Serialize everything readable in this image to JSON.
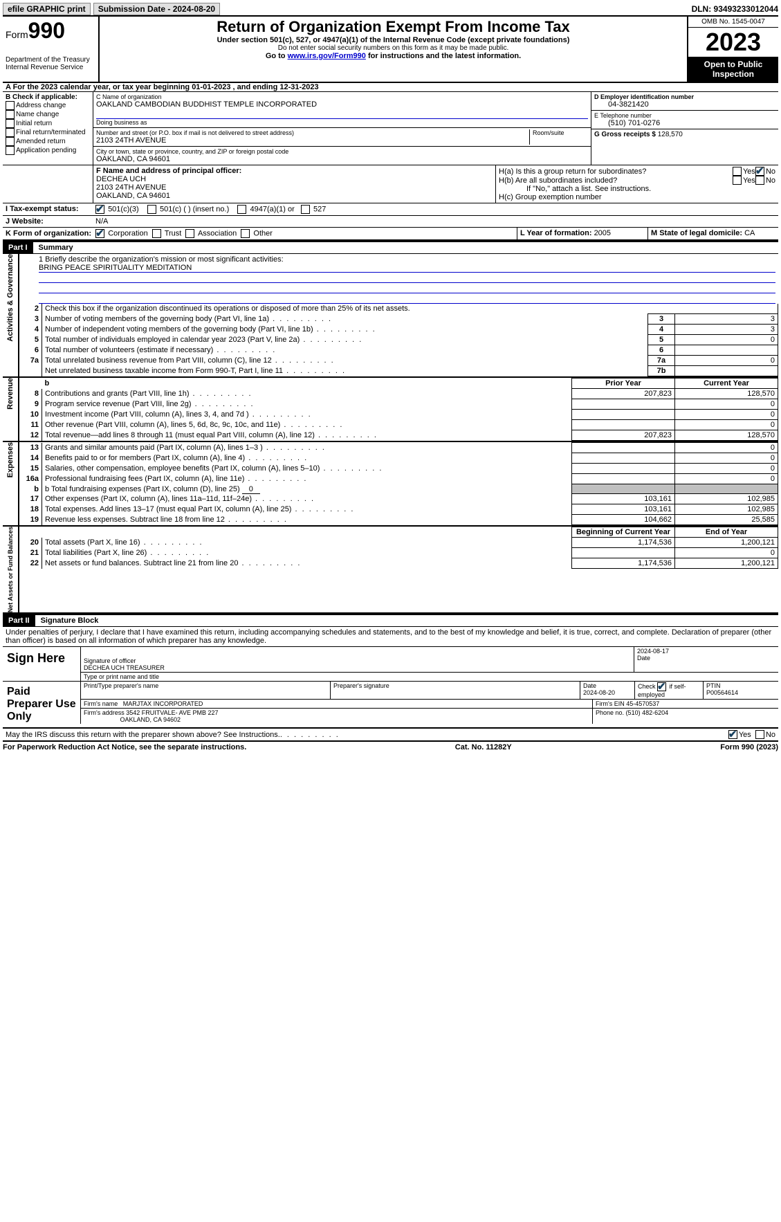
{
  "topbar": {
    "efile": "efile GRAPHIC print",
    "submission": "Submission Date - 2024-08-20",
    "dln": "DLN: 93493233012044"
  },
  "header": {
    "form_prefix": "Form",
    "form_no": "990",
    "dept": "Department of the Treasury Internal Revenue Service",
    "title": "Return of Organization Exempt From Income Tax",
    "sub1": "Under section 501(c), 527, or 4947(a)(1) of the Internal Revenue Code (except private foundations)",
    "sub2": "Do not enter social security numbers on this form as it may be made public.",
    "sub3_pre": "Go to ",
    "sub3_link": "www.irs.gov/Form990",
    "sub3_post": " for instructions and the latest information.",
    "omb": "OMB No. 1545-0047",
    "year": "2023",
    "open": "Open to Public Inspection"
  },
  "rowA": {
    "text": "A For the 2023 calendar year, or tax year beginning 01-01-2023     , and ending 12-31-2023"
  },
  "boxB": {
    "title": "B Check if applicable:",
    "opts": [
      "Address change",
      "Name change",
      "Initial return",
      "Final return/terminated",
      "Amended return",
      "Application pending"
    ]
  },
  "boxC": {
    "name_lab": "C Name of organization",
    "name": "OAKLAND CAMBODIAN BUDDHIST TEMPLE INCORPORATED",
    "dba_lab": "Doing business as",
    "street_lab": "Number and street (or P.O. box if mail is not delivered to street address)",
    "room_lab": "Room/suite",
    "street": "2103 24TH AVENUE",
    "city_lab": "City or town, state or province, country, and ZIP or foreign postal code",
    "city": "OAKLAND, CA  94601"
  },
  "boxD": {
    "lab": "D Employer identification number",
    "val": "04-3821420"
  },
  "boxE": {
    "lab": "E Telephone number",
    "val": "(510) 701-0276"
  },
  "boxG": {
    "lab": "G Gross receipts $ ",
    "val": "128,570"
  },
  "boxF": {
    "lab": "F  Name and address of principal officer:",
    "l1": "DECHEA UCH",
    "l2": "2103 24TH AVENUE",
    "l3": "OAKLAND, CA  94601"
  },
  "boxH": {
    "a": "H(a)  Is this a group return for subordinates?",
    "b": "H(b)  Are all subordinates included?",
    "bnote": "If \"No,\" attach a list. See instructions.",
    "c": "H(c)  Group exemption number",
    "yes": "Yes",
    "no": "No"
  },
  "boxI": {
    "lab": "I  Tax-exempt status:",
    "o1": "501(c)(3)",
    "o2": "501(c) (  ) (insert no.)",
    "o3": "4947(a)(1) or",
    "o4": "527"
  },
  "boxJ": {
    "lab": "J  Website:",
    "val": "N/A"
  },
  "boxK": {
    "lab": "K Form of organization:",
    "o1": "Corporation",
    "o2": "Trust",
    "o3": "Association",
    "o4": "Other"
  },
  "boxL": {
    "lab": "L Year of formation: ",
    "val": "2005"
  },
  "boxM": {
    "lab": "M State of legal domicile: ",
    "val": "CA"
  },
  "part1": {
    "hdr": "Part I",
    "title": "Summary"
  },
  "summary": {
    "mission_lab": "1  Briefly describe the organization's mission or most significant activities:",
    "mission": "BRING PEACE SPIRITUALITY MEDITATION",
    "l2": "Check this box      if the organization discontinued its operations or disposed of more than 25% of its net assets.",
    "rows_gov": [
      {
        "n": "3",
        "d": "Number of voting members of the governing body (Part VI, line 1a)",
        "box": "3",
        "v": "3"
      },
      {
        "n": "4",
        "d": "Number of independent voting members of the governing body (Part VI, line 1b)",
        "box": "4",
        "v": "3"
      },
      {
        "n": "5",
        "d": "Total number of individuals employed in calendar year 2023 (Part V, line 2a)",
        "box": "5",
        "v": "0"
      },
      {
        "n": "6",
        "d": "Total number of volunteers (estimate if necessary)",
        "box": "6",
        "v": ""
      },
      {
        "n": "7a",
        "d": "Total unrelated business revenue from Part VIII, column (C), line 12",
        "box": "7a",
        "v": "0"
      },
      {
        "n": "",
        "d": "Net unrelated business taxable income from Form 990-T, Part I, line 11",
        "box": "7b",
        "v": ""
      }
    ],
    "hdr_prior": "Prior Year",
    "hdr_curr": "Current Year",
    "rows_rev": [
      {
        "n": "8",
        "d": "Contributions and grants (Part VIII, line 1h)",
        "p": "207,823",
        "c": "128,570"
      },
      {
        "n": "9",
        "d": "Program service revenue (Part VIII, line 2g)",
        "p": "",
        "c": "0"
      },
      {
        "n": "10",
        "d": "Investment income (Part VIII, column (A), lines 3, 4, and 7d )",
        "p": "",
        "c": "0"
      },
      {
        "n": "11",
        "d": "Other revenue (Part VIII, column (A), lines 5, 6d, 8c, 9c, 10c, and 11e)",
        "p": "",
        "c": "0"
      },
      {
        "n": "12",
        "d": "Total revenue—add lines 8 through 11 (must equal Part VIII, column (A), line 12)",
        "p": "207,823",
        "c": "128,570"
      }
    ],
    "rows_exp": [
      {
        "n": "13",
        "d": "Grants and similar amounts paid (Part IX, column (A), lines 1–3 )",
        "p": "",
        "c": "0"
      },
      {
        "n": "14",
        "d": "Benefits paid to or for members (Part IX, column (A), line 4)",
        "p": "",
        "c": "0"
      },
      {
        "n": "15",
        "d": "Salaries, other compensation, employee benefits (Part IX, column (A), lines 5–10)",
        "p": "",
        "c": "0"
      },
      {
        "n": "16a",
        "d": "Professional fundraising fees (Part IX, column (A), line 11e)",
        "p": "",
        "c": "0"
      }
    ],
    "l16b_pre": "b   Total fundraising expenses (Part IX, column (D), line 25) ",
    "l16b_val": "0",
    "rows_exp2": [
      {
        "n": "17",
        "d": "Other expenses (Part IX, column (A), lines 11a–11d, 11f–24e)",
        "p": "103,161",
        "c": "102,985"
      },
      {
        "n": "18",
        "d": "Total expenses. Add lines 13–17 (must equal Part IX, column (A), line 25)",
        "p": "103,161",
        "c": "102,985"
      },
      {
        "n": "19",
        "d": "Revenue less expenses. Subtract line 18 from line 12",
        "p": "104,662",
        "c": "25,585"
      }
    ],
    "hdr_begin": "Beginning of Current Year",
    "hdr_end": "End of Year",
    "rows_net": [
      {
        "n": "20",
        "d": "Total assets (Part X, line 16)",
        "p": "1,174,536",
        "c": "1,200,121"
      },
      {
        "n": "21",
        "d": "Total liabilities (Part X, line 26)",
        "p": "",
        "c": "0"
      },
      {
        "n": "22",
        "d": "Net assets or fund balances. Subtract line 21 from line 20",
        "p": "1,174,536",
        "c": "1,200,121"
      }
    ]
  },
  "sidebars": {
    "gov": "Activities & Governance",
    "rev": "Revenue",
    "exp": "Expenses",
    "net": "Net Assets or Fund Balances"
  },
  "part2": {
    "hdr": "Part II",
    "title": "Signature Block",
    "decl": "Under penalties of perjury, I declare that I have examined this return, including accompanying schedules and statements, and to the best of my knowledge and belief, it is true, correct, and complete. Declaration of preparer (other than officer) is based on all information of which preparer has any knowledge."
  },
  "sign": {
    "here": "Sign Here",
    "sig_lab": "Signature of officer",
    "date_lab": "Date",
    "date_val": "2024-08-17",
    "name": "DECHEA UCH  TREASURER",
    "type_lab": "Type or print name and title"
  },
  "prep": {
    "lab": "Paid Preparer Use Only",
    "c1": "Print/Type preparer's name",
    "c2": "Preparer's signature",
    "c3": "Date",
    "c3v": "2024-08-20",
    "c4a": "Check",
    "c4b": "if self-employed",
    "c5": "PTIN",
    "c5v": "P00564614",
    "firm_lab": "Firm's name",
    "firm": "MARJTAX INCORPORATED",
    "ein_lab": "Firm's EIN",
    "ein": "45-4570537",
    "addr_lab": "Firm's address",
    "addr1": "3542 FRUITVALE- AVE PMB 227",
    "addr2": "OAKLAND, CA  94602",
    "phone_lab": "Phone no.",
    "phone": "(510) 482-6204"
  },
  "discuss": {
    "q": "May the IRS discuss this return with the preparer shown above? See Instructions.",
    "yes": "Yes",
    "no": "No"
  },
  "footer": {
    "l": "For Paperwork Reduction Act Notice, see the separate instructions.",
    "m": "Cat. No. 11282Y",
    "r_pre": "Form ",
    "r_b": "990",
    "r_post": " (2023)"
  }
}
